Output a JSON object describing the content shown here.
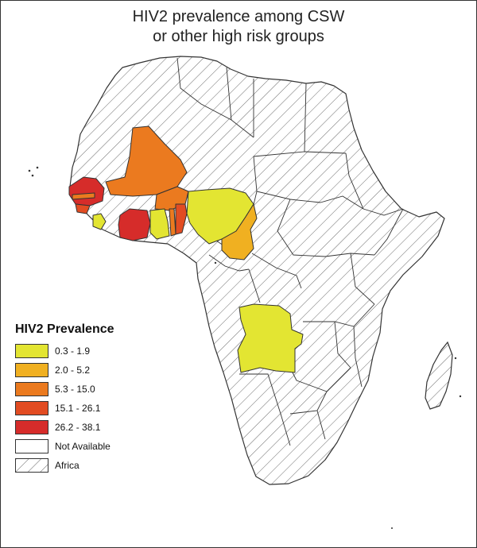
{
  "title": {
    "line1": "HIV2 prevalence among CSW",
    "line2": "or other high risk groups"
  },
  "colors": {
    "c1": "#e3e532",
    "c2": "#f0b021",
    "c3": "#eb7a1f",
    "c4": "#e24c22",
    "c5": "#d62c2a",
    "not_available": "#ffffff",
    "outline": "#333333",
    "hatch": "#6b6b6b"
  },
  "legend": {
    "title": "HIV2 Prevalence",
    "items": [
      {
        "label": "0.3 - 1.9",
        "color": "#e3e532"
      },
      {
        "label": "2.0 - 5.2",
        "color": "#f0b021"
      },
      {
        "label": "5.3 - 15.0",
        "color": "#eb7a1f"
      },
      {
        "label": "15.1 - 26.1",
        "color": "#e24c22"
      },
      {
        "label": "26.2 - 38.1",
        "color": "#d62c2a"
      },
      {
        "label": "Not Available",
        "color": "#ffffff"
      },
      {
        "label": "Africa",
        "color": "hatch"
      }
    ]
  },
  "regions": [
    {
      "name": "Senegal",
      "class": "26.2 - 38.1"
    },
    {
      "name": "Guinea-Bissau",
      "class": "15.1 - 26.1"
    },
    {
      "name": "Gambia",
      "class": "5.3 - 15.0"
    },
    {
      "name": "Mali",
      "class": "5.3 - 15.0"
    },
    {
      "name": "Burkina Faso",
      "class": "5.3 - 15.0"
    },
    {
      "name": "Sierra Leone",
      "class": "0.3 - 1.9"
    },
    {
      "name": "Cote d'Ivoire",
      "class": "26.2 - 38.1"
    },
    {
      "name": "Ghana",
      "class": "0.3 - 1.9"
    },
    {
      "name": "Togo",
      "class": "5.3 - 15.0"
    },
    {
      "name": "Benin",
      "class": "15.1 - 26.1"
    },
    {
      "name": "Nigeria",
      "class": "0.3 - 1.9"
    },
    {
      "name": "Cameroon",
      "class": "2.0 - 5.2"
    },
    {
      "name": "Angola",
      "class": "0.3 - 1.9"
    }
  ]
}
